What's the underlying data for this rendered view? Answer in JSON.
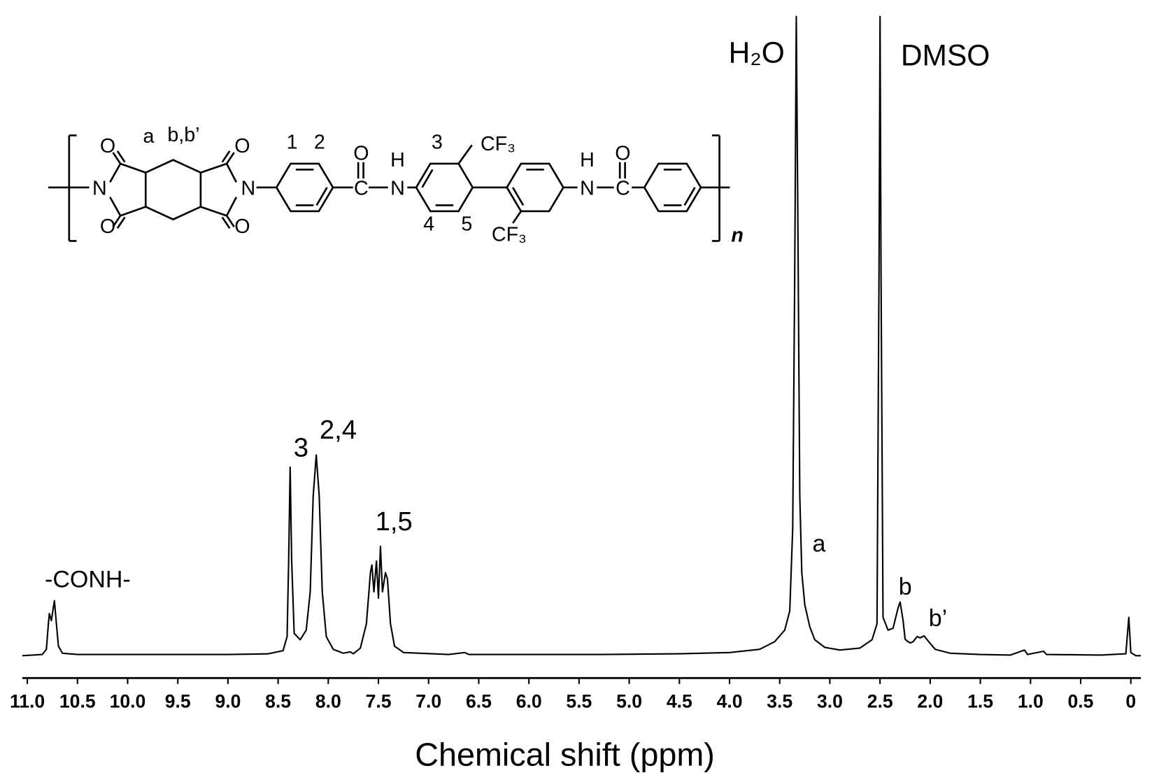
{
  "chart_data": {
    "type": "line",
    "x_label": "Chemical shift (ppm)",
    "xlim": [
      11.05,
      -0.1
    ],
    "ylim": [
      0,
      100
    ],
    "xticks": [
      {
        "value": 11,
        "label": "11.0"
      },
      10.5,
      {
        "value": 10,
        "label": "10.0"
      },
      9.5,
      {
        "value": 9,
        "label": "9.0"
      },
      8.5,
      {
        "value": 8,
        "label": "8.0"
      },
      7.5,
      {
        "value": 7,
        "label": "7.0"
      },
      6.5,
      {
        "value": 6,
        "label": "6.0"
      },
      5.5,
      {
        "value": 5,
        "label": "5.0"
      },
      4.5,
      {
        "value": 4,
        "label": "4.0"
      },
      3.5,
      {
        "value": 3,
        "label": "3.0"
      },
      2.5,
      {
        "value": 2,
        "label": "2.0"
      },
      1.5,
      {
        "value": 1,
        "label": "1.0"
      },
      0.5,
      0
    ],
    "color": "#000000",
    "x": [
      11.05,
      10.85,
      10.81,
      10.79,
      10.78,
      10.76,
      10.73,
      10.71,
      10.69,
      10.65,
      10.5,
      9.0,
      8.6,
      8.45,
      8.41,
      8.395,
      8.38,
      8.365,
      8.34,
      8.28,
      8.22,
      8.18,
      8.15,
      8.12,
      8.09,
      8.06,
      8.02,
      7.95,
      7.85,
      7.78,
      7.75,
      7.68,
      7.62,
      7.58,
      7.565,
      7.545,
      7.52,
      7.5,
      7.48,
      7.46,
      7.43,
      7.41,
      7.38,
      7.34,
      7.25,
      6.8,
      6.64,
      6.6,
      5.3,
      4.5,
      4.0,
      3.7,
      3.55,
      3.45,
      3.4,
      3.37,
      3.35,
      3.335,
      3.32,
      3.3,
      3.28,
      3.25,
      3.2,
      3.15,
      3.05,
      2.9,
      2.7,
      2.58,
      2.53,
      2.51,
      2.5,
      2.49,
      2.47,
      2.42,
      2.37,
      2.32,
      2.3,
      2.27,
      2.25,
      2.23,
      2.2,
      2.17,
      2.13,
      2.1,
      2.06,
      2.02,
      1.95,
      1.8,
      1.5,
      1.2,
      1.06,
      1.03,
      0.87,
      0.84,
      0.3,
      0.05,
      0.02,
      0.0,
      -0.05,
      -0.1
    ],
    "values": [
      0,
      0.2,
      1,
      5,
      6.6,
      5.5,
      8.6,
      5,
      1.5,
      0.4,
      0.2,
      0.2,
      0.3,
      0.8,
      3,
      15,
      29.5,
      15,
      3.5,
      2.5,
      4,
      10,
      25,
      31.4,
      25,
      10,
      3,
      1,
      0.4,
      0.6,
      0.3,
      1.2,
      5,
      13,
      14.2,
      10,
      14.8,
      9,
      17.1,
      10,
      13,
      12,
      5,
      1.5,
      0.5,
      0.2,
      0.5,
      0.2,
      0.2,
      0.3,
      0.5,
      1,
      2.2,
      4,
      7,
      20,
      60,
      100,
      70,
      25,
      13,
      8,
      4.5,
      2.5,
      1.3,
      0.9,
      1.2,
      2.5,
      5,
      60,
      100,
      60,
      6,
      4,
      4.3,
      7.5,
      8.4,
      5.5,
      2.6,
      2.3,
      2,
      2.2,
      3,
      2.8,
      3.1,
      2.3,
      1,
      0.4,
      0.2,
      0.1,
      0.9,
      0.2,
      0.7,
      0.2,
      0.1,
      0.3,
      6,
      0.5,
      0,
      0
    ],
    "annotations": [
      "H₂O",
      "DMSO",
      "-CONH-",
      "3",
      "2,4",
      "1,5",
      "a",
      "b",
      "b’"
    ]
  },
  "structure": {
    "labels": [
      "O",
      "N",
      "O",
      "a",
      "b,b’",
      "O",
      "N",
      "O",
      "1",
      "2",
      "O",
      "C",
      "H",
      "N",
      "3",
      "CF₃",
      "4",
      "5",
      "CF₃",
      "H",
      "N",
      "O",
      "C",
      "n"
    ]
  }
}
